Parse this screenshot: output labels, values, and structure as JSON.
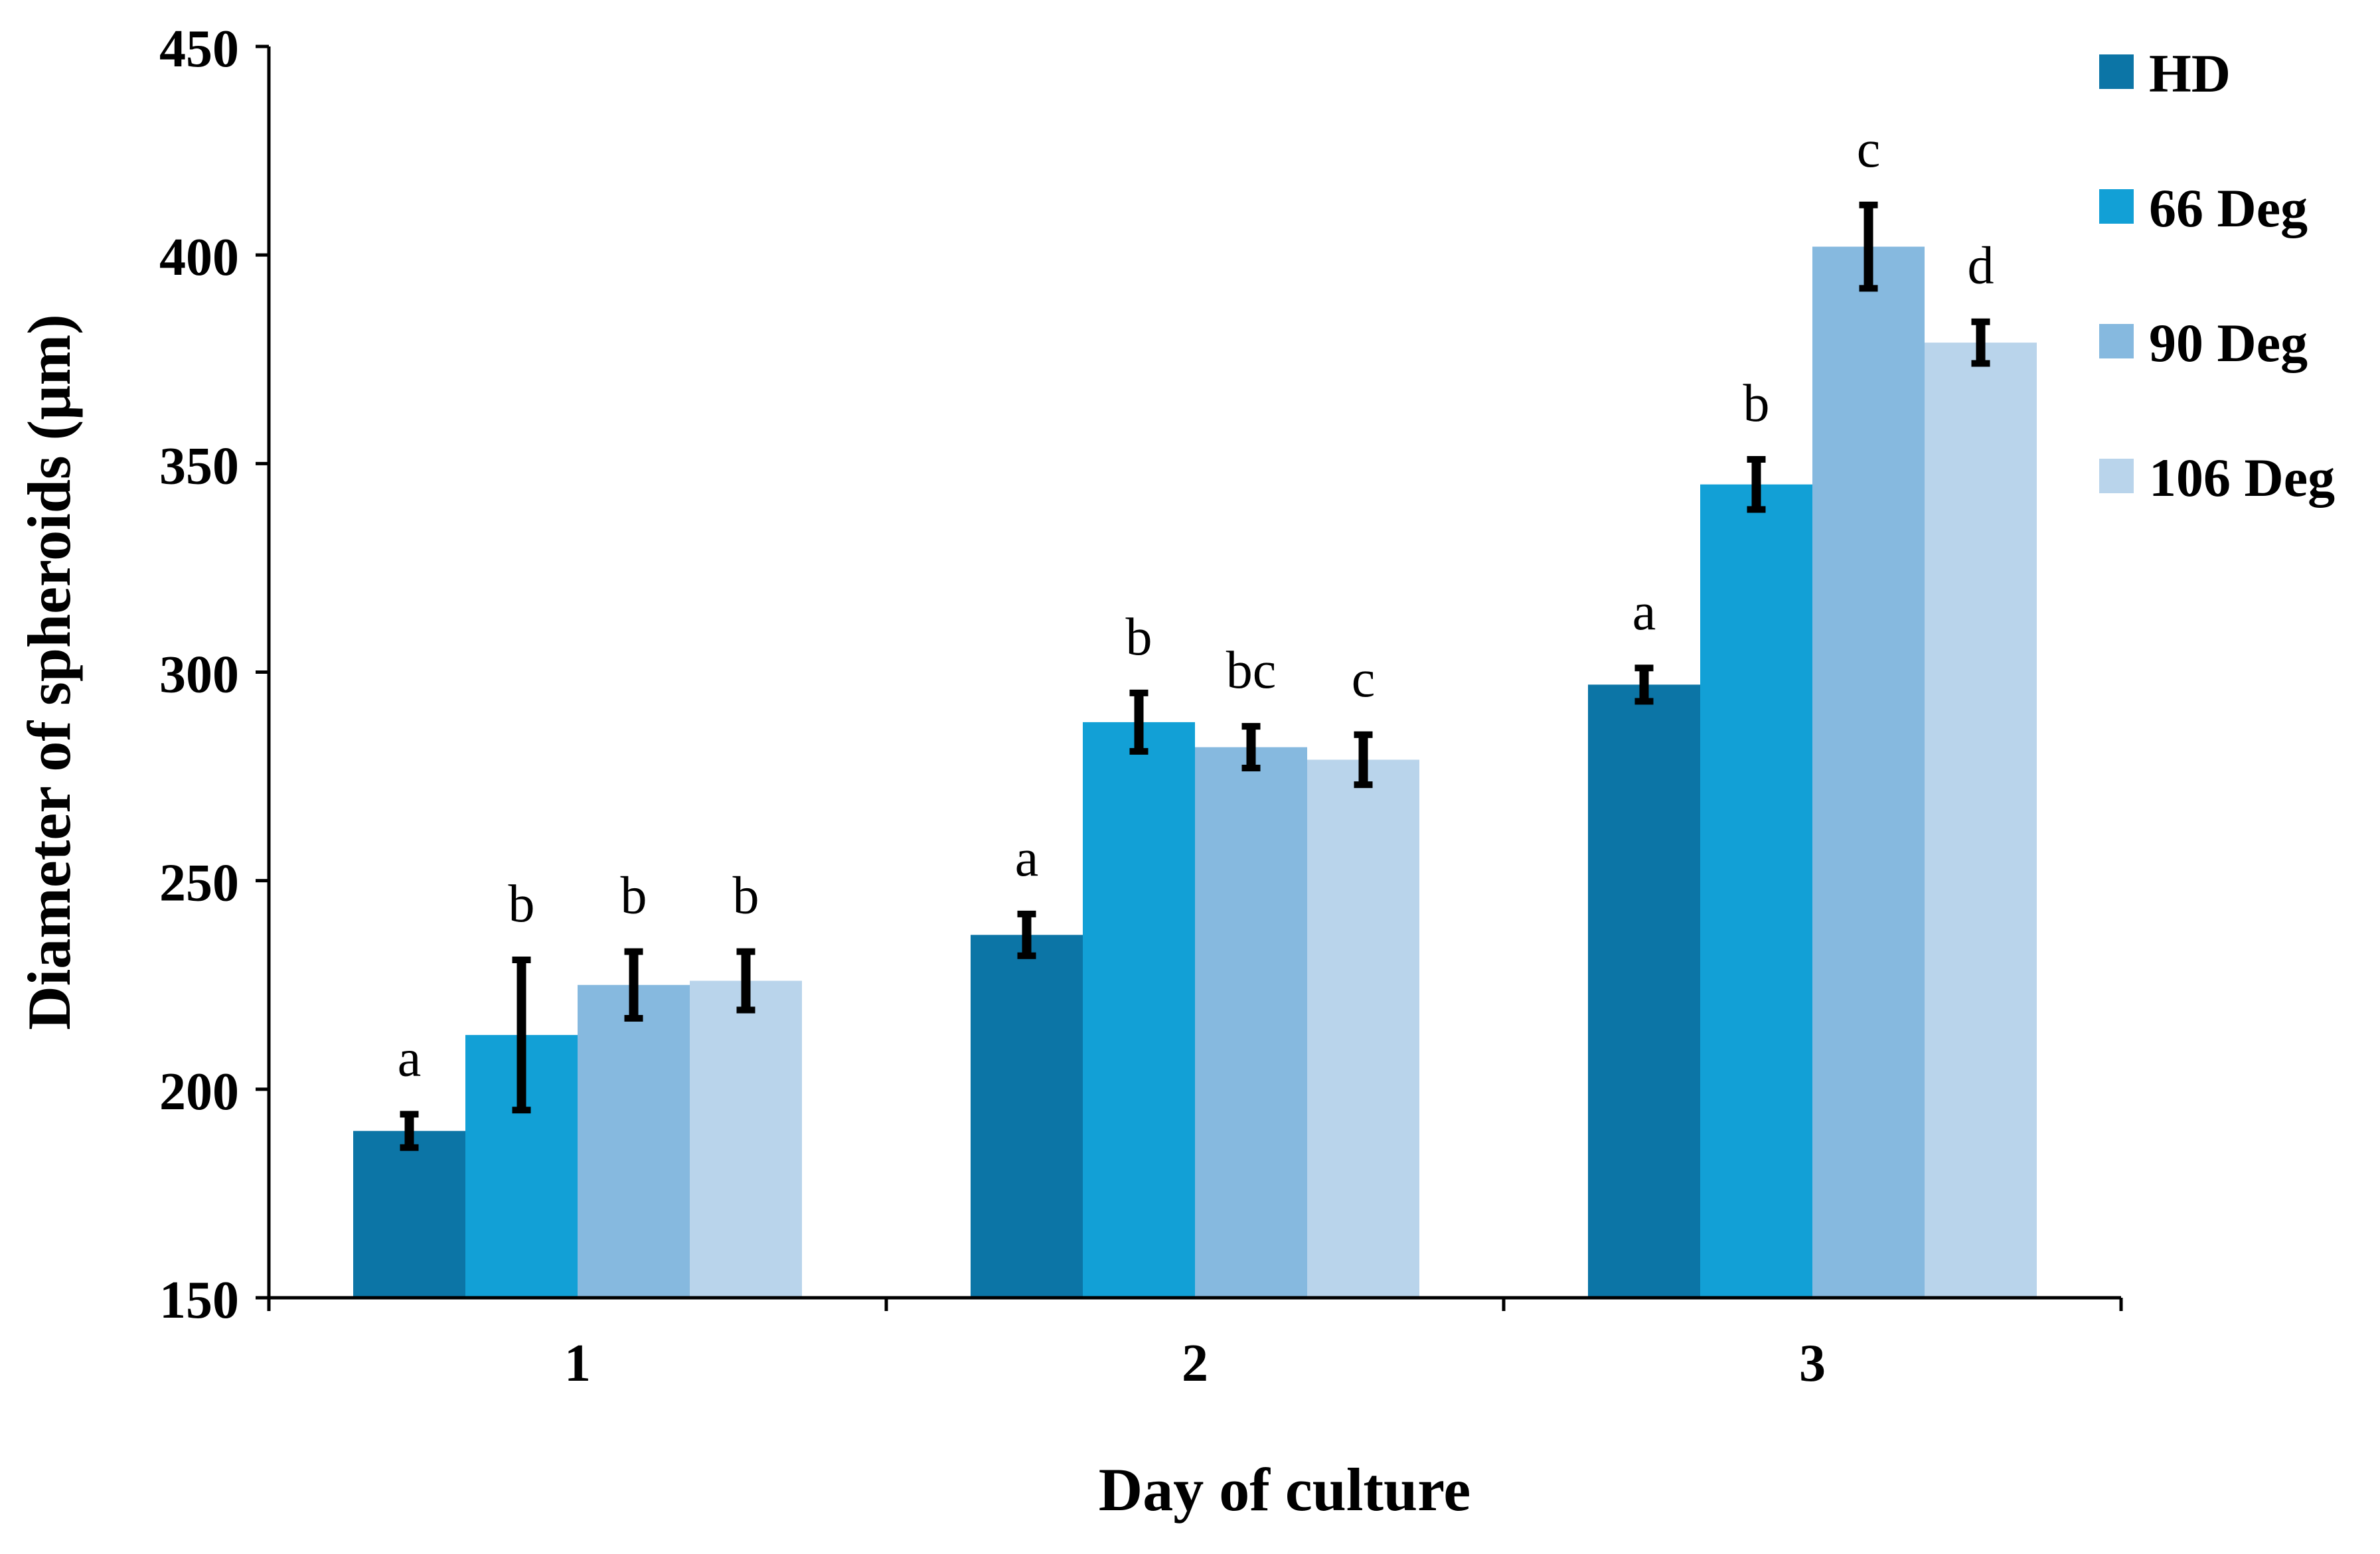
{
  "chart_data": {
    "type": "bar",
    "title": "",
    "xlabel": "Day of culture",
    "ylabel": "Diameter of spheroids (μm)",
    "ylim": [
      150,
      450
    ],
    "yticks": [
      "150",
      "200",
      "250",
      "300",
      "350",
      "400",
      "450"
    ],
    "grid": false,
    "legend_position": "top-right",
    "categories": [
      "1",
      "2",
      "3"
    ],
    "series": [
      {
        "name": "HD",
        "color": "#0c75a6",
        "values": [
          190,
          237,
          297
        ],
        "errors": [
          4,
          5,
          4
        ],
        "labels": [
          "a",
          "a",
          "a"
        ]
      },
      {
        "name": "66 Deg",
        "color": "#12a0d6",
        "values": [
          213,
          288,
          345
        ],
        "errors": [
          18,
          7,
          6
        ],
        "labels": [
          "b",
          "b",
          "b"
        ]
      },
      {
        "name": "90 Deg",
        "color": "#86b9df",
        "values": [
          225,
          282,
          402
        ],
        "errors": [
          8,
          5,
          10
        ],
        "labels": [
          "b",
          "bc",
          "c"
        ]
      },
      {
        "name": "106 Deg",
        "color": "#b9d4eb",
        "values": [
          226,
          279,
          379
        ],
        "errors": [
          7,
          6,
          5
        ],
        "labels": [
          "b",
          "c",
          "d"
        ]
      }
    ]
  }
}
